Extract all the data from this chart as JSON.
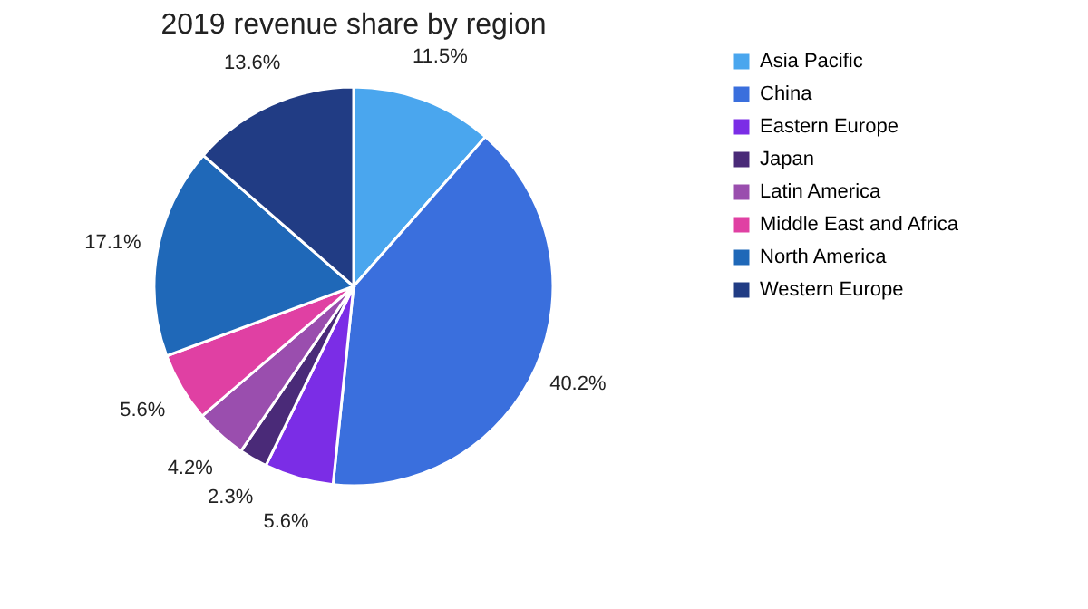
{
  "chart_data": {
    "type": "pie",
    "title": "2019 revenue share by region",
    "categories": [
      "Asia Pacific",
      "China",
      "Eastern Europe",
      "Japan",
      "Latin America",
      "Middle East and Africa",
      "North America",
      "Western Europe"
    ],
    "values": [
      11.5,
      40.2,
      5.6,
      2.3,
      4.2,
      5.6,
      17.1,
      13.6
    ],
    "value_labels": [
      "11.5%",
      "40.2%",
      "5.6%",
      "2.3%",
      "4.2%",
      "5.6%",
      "17.1%",
      "13.6%"
    ],
    "colors": [
      "#4aa6ee",
      "#3a6fdd",
      "#7b2de6",
      "#4a2a78",
      "#9a4eae",
      "#e040a3",
      "#1f68b8",
      "#213c84"
    ],
    "legend": "right"
  }
}
